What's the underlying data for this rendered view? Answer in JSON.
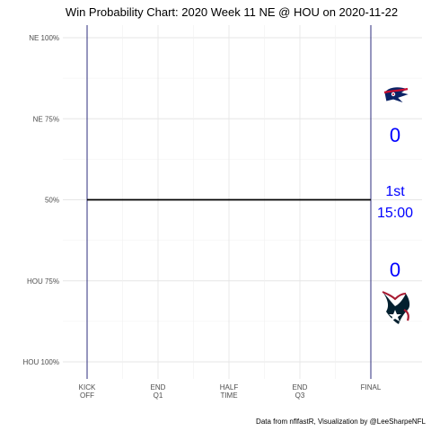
{
  "chart_data": {
    "type": "line",
    "title": "Win Probability Chart: 2020 Week 11 NE @ HOU on 2020-11-22",
    "caption": "Data from nflfastR, Visualization by @LeeSharpeNFL",
    "xlabel": "",
    "ylabel": "",
    "grid": true,
    "x_ticks": [
      {
        "value": 0,
        "label": [
          "KICK",
          "OFF"
        ]
      },
      {
        "value": 900,
        "label": [
          "END",
          "Q1"
        ]
      },
      {
        "value": 1800,
        "label": [
          "HALF",
          "TIME"
        ]
      },
      {
        "value": 2700,
        "label": [
          "END",
          "Q3"
        ]
      },
      {
        "value": 3600,
        "label": [
          "FINAL"
        ]
      }
    ],
    "xlim": [
      0,
      3600
    ],
    "y_ticks": [
      {
        "value": 1.0,
        "label": "NE 100%"
      },
      {
        "value": 0.75,
        "label": "NE 75%"
      },
      {
        "value": 0.5,
        "label": "50%"
      },
      {
        "value": 0.25,
        "label": "HOU 75%"
      },
      {
        "value": 0.0,
        "label": "HOU 100%"
      }
    ],
    "ylim": [
      0,
      1
    ],
    "vertical_lines": [
      0,
      3600
    ],
    "series": [
      {
        "x": [
          0,
          3600
        ],
        "y": [
          0.5,
          0.5
        ],
        "color": "#000000"
      }
    ],
    "annotations": {
      "away_team_logo": "patriots-logo",
      "home_team_logo": "texans-logo",
      "away_score": "0",
      "home_score": "0",
      "quarter": "1st",
      "clock": "15:00",
      "text_color": "#0000ff"
    }
  }
}
